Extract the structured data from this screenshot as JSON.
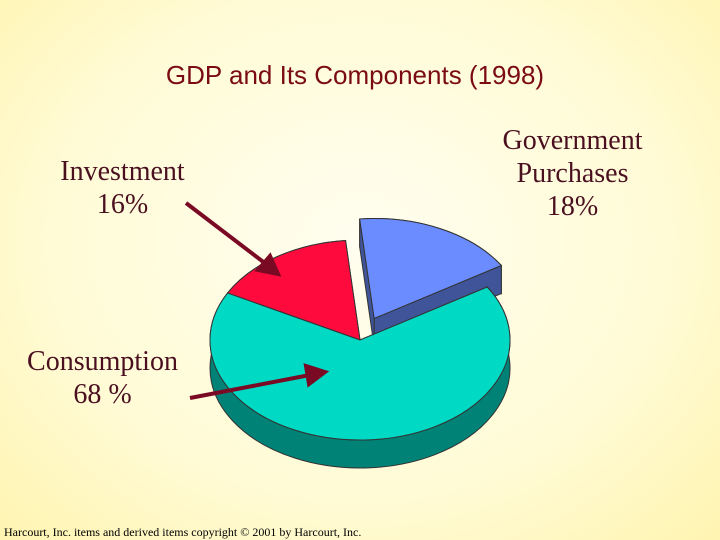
{
  "chart_data": {
    "type": "pie",
    "title": "GDP and Its Components (1998)",
    "categories": [
      "Government Purchases",
      "Investment",
      "Consumption"
    ],
    "values": [
      18,
      16,
      68
    ],
    "value_labels": [
      "18%",
      "16%",
      "68 %"
    ],
    "colors": [
      "#6b8cff",
      "#ff0a3c",
      "#00d9c4"
    ]
  },
  "footer": "Harcourt, Inc. items and derived items copyright © 2001 by Harcourt, Inc."
}
